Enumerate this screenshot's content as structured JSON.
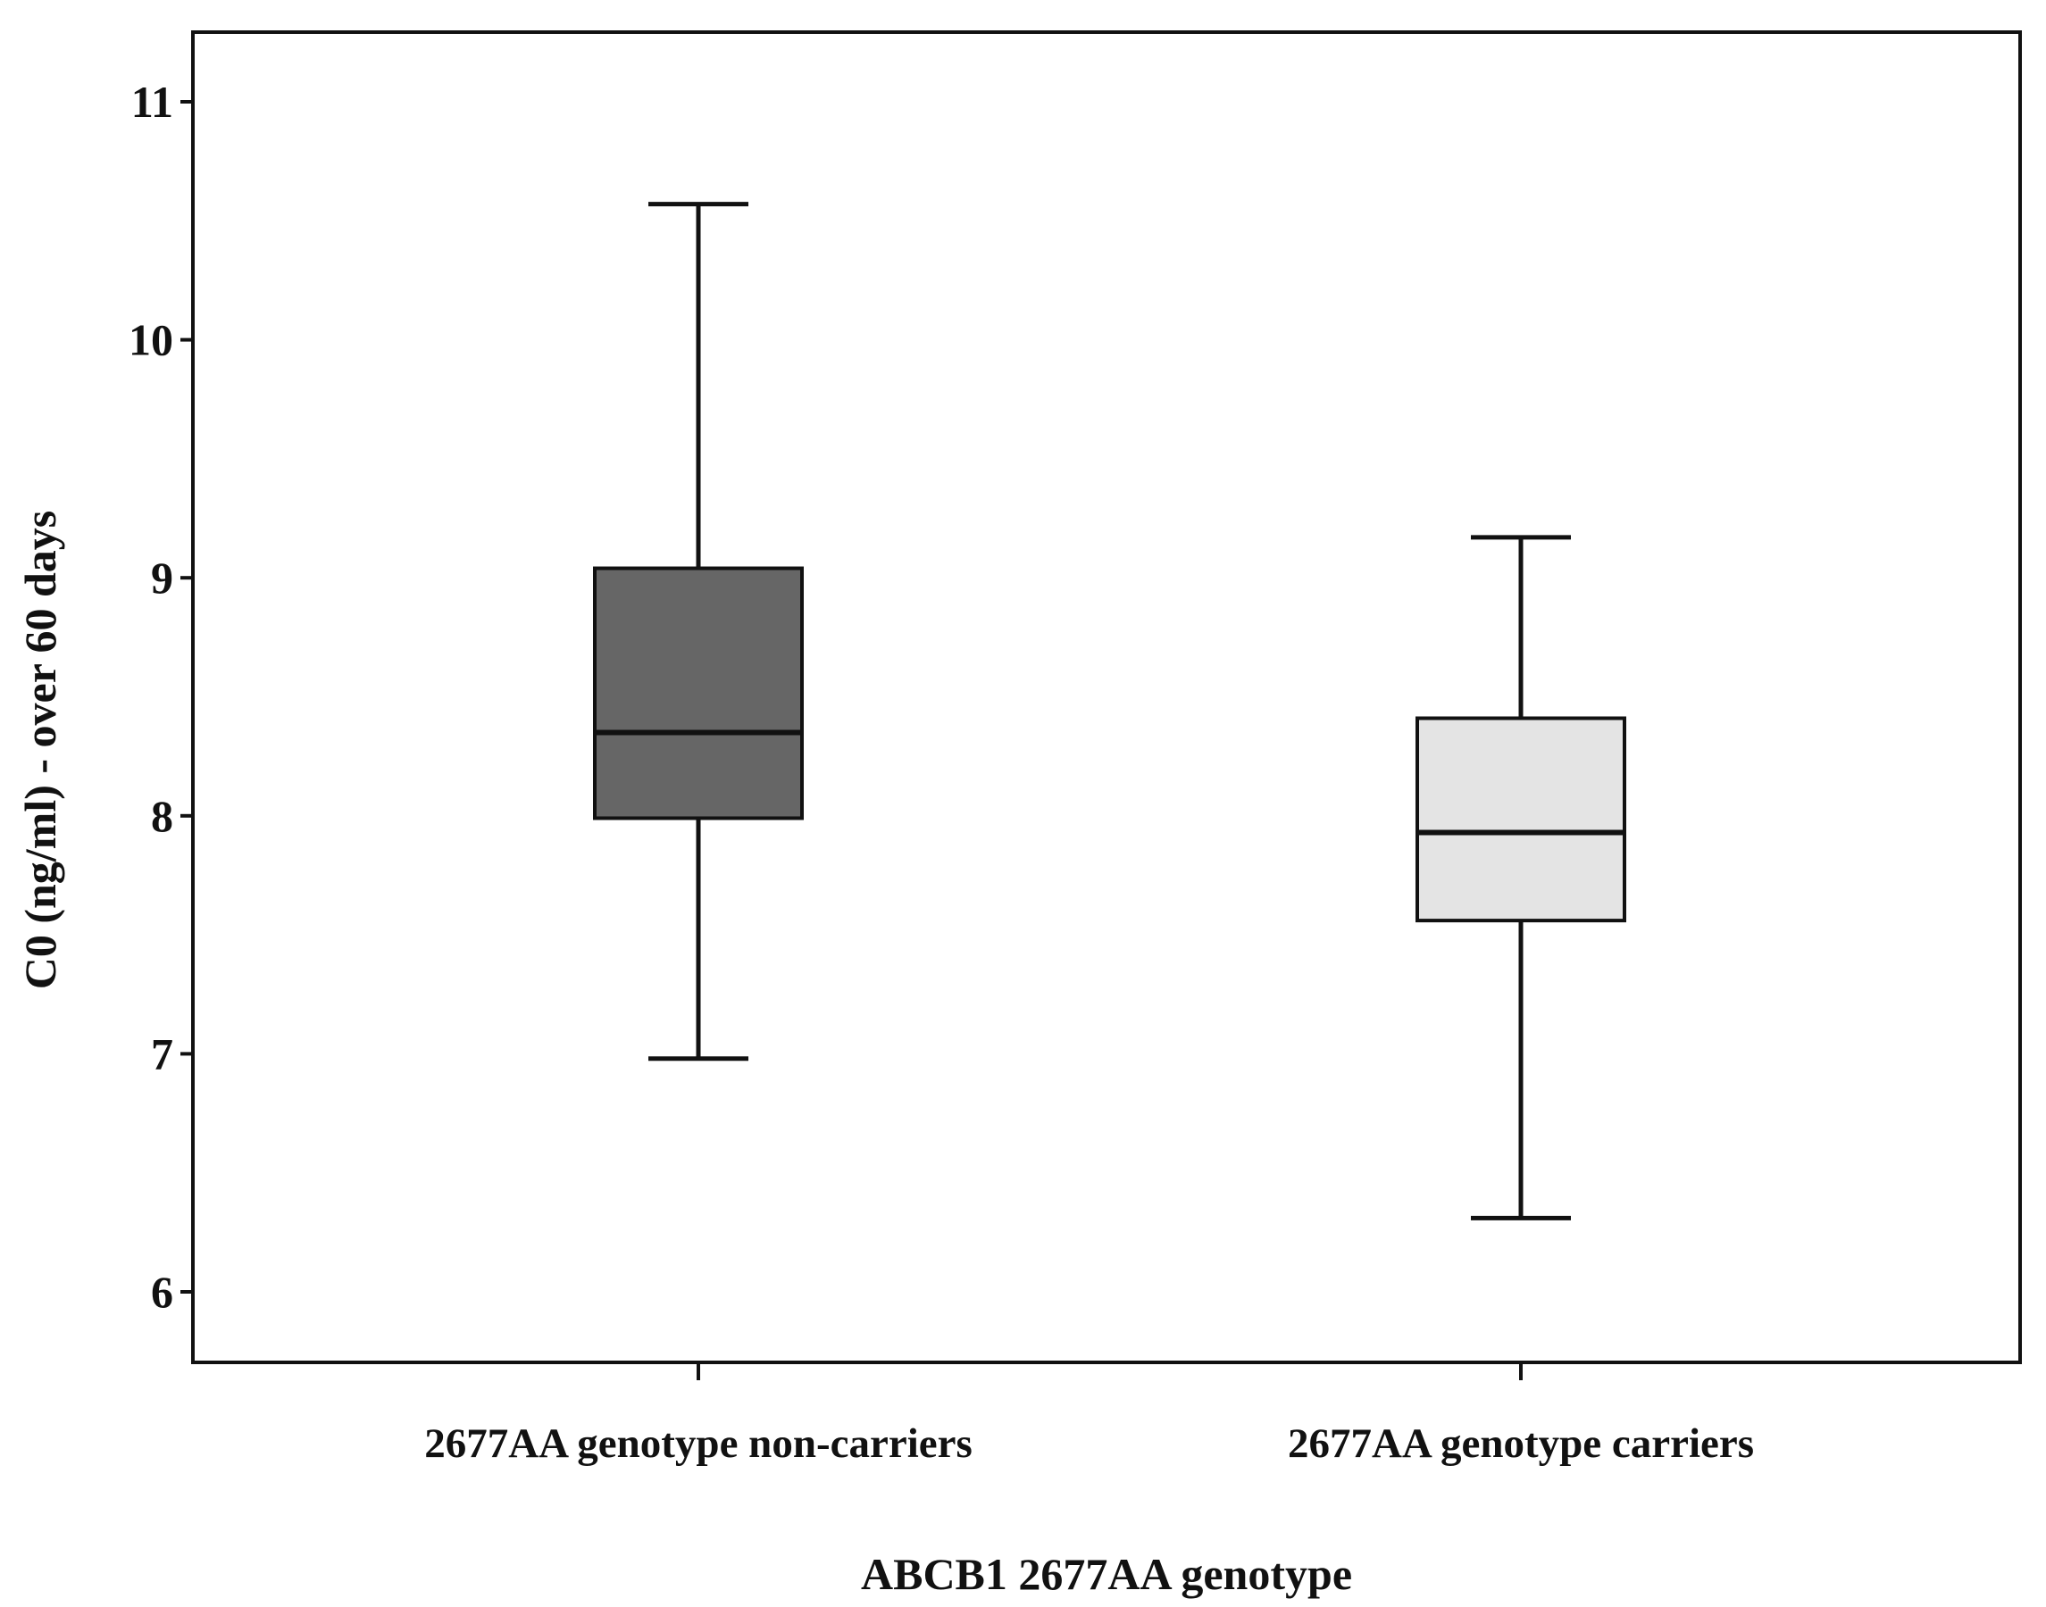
{
  "chart_data": {
    "type": "boxplot",
    "xlabel": "ABCB1 2677AA genotype",
    "ylabel": "C0 (ng/ml) - over 60 days",
    "ylim": [
      5.7,
      11.3
    ],
    "yticks": [
      6,
      7,
      8,
      9,
      10,
      11
    ],
    "grid": false,
    "categories": [
      "2677AA genotype non-carriers",
      "2677AA genotype carriers"
    ],
    "boxes": [
      {
        "category": "2677AA genotype non-carriers",
        "min": 6.98,
        "q1": 7.99,
        "median": 8.35,
        "q3": 9.04,
        "max": 10.57,
        "color": "#666666"
      },
      {
        "category": "2677AA genotype carriers",
        "min": 6.31,
        "q1": 7.56,
        "median": 7.93,
        "q3": 8.41,
        "max": 9.17,
        "color": "#e4e4e4"
      }
    ]
  }
}
